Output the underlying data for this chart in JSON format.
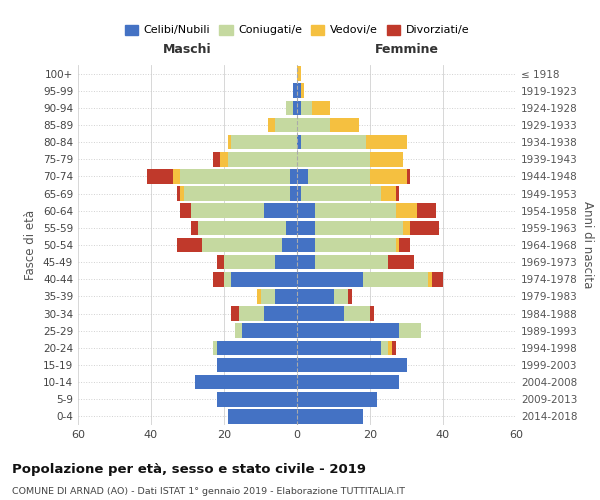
{
  "age_groups": [
    "0-4",
    "5-9",
    "10-14",
    "15-19",
    "20-24",
    "25-29",
    "30-34",
    "35-39",
    "40-44",
    "45-49",
    "50-54",
    "55-59",
    "60-64",
    "65-69",
    "70-74",
    "75-79",
    "80-84",
    "85-89",
    "90-94",
    "95-99",
    "100+"
  ],
  "birth_years": [
    "2014-2018",
    "2009-2013",
    "2004-2008",
    "1999-2003",
    "1994-1998",
    "1989-1993",
    "1984-1988",
    "1979-1983",
    "1974-1978",
    "1969-1973",
    "1964-1968",
    "1959-1963",
    "1954-1958",
    "1949-1953",
    "1944-1948",
    "1939-1943",
    "1934-1938",
    "1929-1933",
    "1924-1928",
    "1919-1923",
    "≤ 1918"
  ],
  "colors": {
    "celibi": "#4472c4",
    "coniugati": "#c5d9a0",
    "vedovi": "#f5c040",
    "divorziati": "#c0392b"
  },
  "male": {
    "celibi": [
      19,
      22,
      28,
      22,
      22,
      15,
      9,
      6,
      18,
      6,
      4,
      3,
      9,
      2,
      2,
      0,
      0,
      0,
      1,
      1,
      0
    ],
    "coniugati": [
      0,
      0,
      0,
      0,
      1,
      2,
      7,
      4,
      2,
      14,
      22,
      24,
      20,
      29,
      30,
      19,
      18,
      6,
      2,
      0,
      0
    ],
    "vedovi": [
      0,
      0,
      0,
      0,
      0,
      0,
      0,
      1,
      0,
      0,
      0,
      0,
      0,
      1,
      2,
      2,
      1,
      2,
      0,
      0,
      0
    ],
    "divorziati": [
      0,
      0,
      0,
      0,
      0,
      0,
      2,
      0,
      3,
      2,
      7,
      2,
      3,
      1,
      7,
      2,
      0,
      0,
      0,
      0,
      0
    ]
  },
  "female": {
    "celibi": [
      18,
      22,
      28,
      30,
      23,
      28,
      13,
      10,
      18,
      5,
      5,
      5,
      5,
      1,
      3,
      0,
      1,
      0,
      1,
      1,
      0
    ],
    "coniugati": [
      0,
      0,
      0,
      0,
      2,
      6,
      7,
      4,
      18,
      20,
      22,
      24,
      22,
      22,
      17,
      20,
      18,
      9,
      3,
      0,
      0
    ],
    "vedovi": [
      0,
      0,
      0,
      0,
      1,
      0,
      0,
      0,
      1,
      0,
      1,
      2,
      6,
      4,
      10,
      9,
      11,
      8,
      5,
      1,
      1
    ],
    "divorziati": [
      0,
      0,
      0,
      0,
      1,
      0,
      1,
      1,
      3,
      7,
      3,
      8,
      5,
      1,
      1,
      0,
      0,
      0,
      0,
      0,
      0
    ]
  },
  "title": "Popolazione per età, sesso e stato civile - 2019",
  "subtitle": "COMUNE DI ARNAD (AO) - Dati ISTAT 1° gennaio 2019 - Elaborazione TUTTITALIA.IT",
  "xlabel_left": "Maschi",
  "xlabel_right": "Femmine",
  "ylabel_left": "Fasce di età",
  "ylabel_right": "Anni di nascita",
  "xlim": 60,
  "legend_labels": [
    "Celibi/Nubili",
    "Coniugati/e",
    "Vedovi/e",
    "Divorziati/e"
  ],
  "background_color": "#ffffff",
  "grid_color": "#cccccc"
}
